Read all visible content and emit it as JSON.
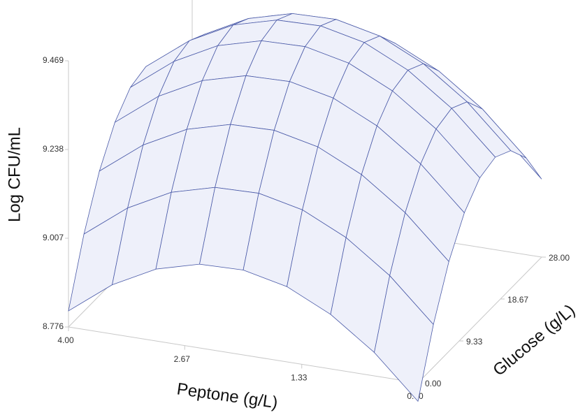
{
  "chart_data": {
    "type": "surface",
    "x_label": "Peptone (g/L)",
    "y_label": "Glucose (g/L)",
    "z_label": "Log CFU/mL",
    "x": [
      0,
      0.5,
      1,
      1.5,
      2,
      2.5,
      3,
      3.5,
      4
    ],
    "y": [
      0,
      3.5,
      7,
      10.5,
      14,
      17.5,
      21,
      24.5,
      28
    ],
    "z": [
      [
        8.728,
        8.887,
        9.01,
        9.096,
        9.146,
        9.159,
        9.135,
        9.075,
        8.979
      ],
      [
        8.837,
        8.996,
        9.119,
        9.205,
        9.255,
        9.268,
        9.244,
        9.184,
        9.088
      ],
      [
        8.918,
        9.077,
        9.2,
        9.286,
        9.336,
        9.349,
        9.325,
        9.265,
        9.169
      ],
      [
        8.972,
        9.131,
        9.254,
        9.34,
        9.39,
        9.403,
        9.379,
        9.319,
        9.223
      ],
      [
        8.997,
        9.156,
        9.279,
        9.365,
        9.415,
        9.428,
        9.404,
        9.344,
        9.248
      ],
      [
        8.994,
        9.153,
        9.276,
        9.362,
        9.412,
        9.425,
        9.401,
        9.341,
        9.245
      ],
      [
        8.963,
        9.122,
        9.245,
        9.331,
        9.381,
        9.394,
        9.37,
        9.31,
        9.214
      ],
      [
        8.904,
        9.063,
        9.186,
        9.272,
        9.322,
        9.335,
        9.311,
        9.251,
        9.155
      ],
      [
        8.818,
        8.977,
        9.1,
        9.186,
        9.236,
        9.249,
        9.225,
        9.165,
        9.069
      ]
    ],
    "xlim": [
      0,
      4
    ],
    "ylim": [
      0,
      28
    ],
    "zlim": [
      8.776,
      9.469
    ],
    "xticks": [
      {
        "value": 4,
        "label": "4.00"
      },
      {
        "value": 2.67,
        "label": "2.67"
      },
      {
        "value": 1.33,
        "label": "1.33"
      },
      {
        "value": 0,
        "label": "0.00"
      }
    ],
    "yticks": [
      {
        "value": 0,
        "label": "0.00"
      },
      {
        "value": 9.33,
        "label": "9.33"
      },
      {
        "value": 18.67,
        "label": "18.67"
      },
      {
        "value": 28,
        "label": "28.00"
      }
    ],
    "zticks": [
      8.776,
      9.007,
      9.238,
      9.469
    ],
    "color": "#4a5aa8"
  }
}
